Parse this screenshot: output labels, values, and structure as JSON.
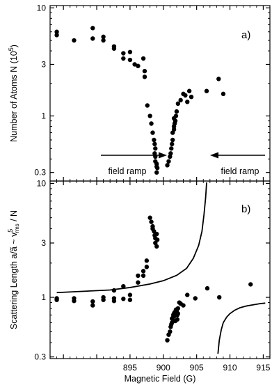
{
  "chart_data": [
    {
      "type": "scatter",
      "panel_label": "a)",
      "ylabel": "Number of Atoms N (10^5)",
      "yscale": "log",
      "ylim": [
        0.25,
        10.5
      ],
      "xlim": [
        883,
        916
      ],
      "yticks": [
        0.3,
        1,
        3,
        10
      ],
      "ytick_labels": [
        "0.3",
        "1",
        "3",
        "10"
      ],
      "annotations": [
        {
          "text": "field ramp",
          "arrow": "right"
        },
        {
          "text": "field ramp",
          "arrow": "left"
        }
      ],
      "series": [
        {
          "x": [
            884.0,
            884.0,
            886.6,
            889.4,
            889.4,
            891.0,
            891.0,
            892.6,
            892.6,
            894.0,
            894.0,
            895.0,
            895.0,
            895.7,
            896.2,
            897.0,
            897.2,
            897.2,
            897.6,
            898.0,
            898.2,
            898.4,
            898.6,
            898.7,
            898.8,
            898.7,
            898.8,
            898.8,
            899.0,
            899.1,
            899.0,
            899.0,
            900.6,
            900.8,
            901.0,
            901.1,
            901.2,
            901.3,
            901.4,
            901.4,
            901.6,
            901.6,
            901.7,
            901.8,
            901.6,
            901.9,
            902.0,
            902.2,
            902.6,
            903.0,
            903.3,
            903.6,
            903.9,
            904.2,
            906.5,
            908.3,
            909.0
          ],
          "y": [
            6.0,
            5.6,
            5.0,
            6.5,
            5.2,
            5.4,
            5.0,
            4.4,
            4.2,
            3.8,
            3.4,
            3.9,
            3.3,
            3.0,
            2.9,
            3.4,
            2.6,
            2.3,
            1.25,
            1.0,
            0.85,
            0.7,
            0.6,
            0.55,
            0.5,
            0.45,
            0.42,
            0.38,
            0.36,
            0.33,
            0.3,
            0.34,
            0.35,
            0.38,
            0.42,
            0.45,
            0.5,
            0.55,
            0.6,
            0.7,
            0.75,
            0.8,
            0.85,
            0.9,
            0.95,
            1.0,
            1.1,
            1.3,
            1.4,
            1.6,
            1.55,
            1.35,
            1.7,
            1.5,
            1.7,
            2.2,
            1.6
          ]
        }
      ]
    },
    {
      "type": "scatter",
      "panel_label": "b)",
      "xlabel": "Magnetic Field (G)",
      "ylabel": "Scattering Length a/ã ~ v_rms^5 / N",
      "yscale": "log",
      "ylim": [
        0.29,
        10.5
      ],
      "xlim": [
        883,
        916
      ],
      "xticks": [
        895,
        900,
        905,
        910,
        915
      ],
      "yticks": [
        0.3,
        1,
        3,
        10
      ],
      "ytick_labels": [
        "0.3",
        "1",
        "3",
        "10"
      ],
      "series": [
        {
          "x": [
            884.0,
            884.0,
            886.6,
            886.6,
            889.4,
            889.4,
            891.0,
            891.0,
            892.6,
            892.6,
            892.6,
            894.0,
            894.0,
            895.0,
            895.0,
            896.2,
            896.2,
            897.0,
            897.0,
            897.5,
            897.5,
            898.0,
            898.2,
            898.4,
            898.4,
            898.6,
            898.7,
            898.8,
            898.8,
            899.0,
            899.0,
            899.1,
            900.6,
            900.8,
            901.0,
            901.1,
            901.2,
            901.3,
            901.3,
            901.4,
            901.5,
            901.6,
            901.6,
            901.7,
            901.8,
            901.9,
            902.0,
            902.1,
            902.1,
            902.2,
            902.2,
            902.4,
            902.6,
            903.0,
            903.6,
            904.8,
            906.6,
            908.4,
            913.1
          ],
          "y": [
            0.98,
            0.95,
            0.98,
            0.93,
            0.92,
            0.85,
            1.0,
            0.95,
            1.15,
            0.98,
            0.93,
            1.25,
            0.97,
            1.05,
            0.95,
            1.55,
            1.35,
            1.7,
            1.55,
            2.1,
            1.85,
            5.0,
            4.6,
            4.2,
            4.0,
            3.8,
            3.5,
            3.3,
            3.0,
            2.8,
            3.6,
            3.2,
            0.42,
            0.47,
            0.5,
            0.55,
            0.58,
            0.6,
            0.65,
            0.66,
            0.7,
            0.72,
            0.68,
            0.74,
            0.62,
            0.78,
            0.75,
            0.7,
            0.64,
            0.8,
            0.72,
            0.9,
            0.88,
            0.85,
            1.05,
            0.98,
            1.2,
            1.0,
            1.3
          ]
        }
      ],
      "fit_curve": {
        "form": "1 + 1/(907 - B)",
        "left_x": [
          884,
          888,
          892,
          895,
          898,
          900,
          902,
          903.5,
          904.5,
          905.3,
          905.8,
          906.1,
          906.35,
          906.5
        ],
        "left_y": [
          1.1,
          1.13,
          1.16,
          1.22,
          1.31,
          1.4,
          1.56,
          1.8,
          2.2,
          2.85,
          3.8,
          5.3,
          7.5,
          10.2
        ],
        "right_x": [
          908.2,
          908.4,
          908.7,
          909.0,
          909.5,
          910.0,
          910.7,
          911.5,
          912.5,
          913.5,
          914.5,
          915.3
        ],
        "right_y": [
          0.32,
          0.42,
          0.52,
          0.6,
          0.67,
          0.72,
          0.77,
          0.81,
          0.84,
          0.86,
          0.88,
          0.89
        ]
      }
    }
  ]
}
